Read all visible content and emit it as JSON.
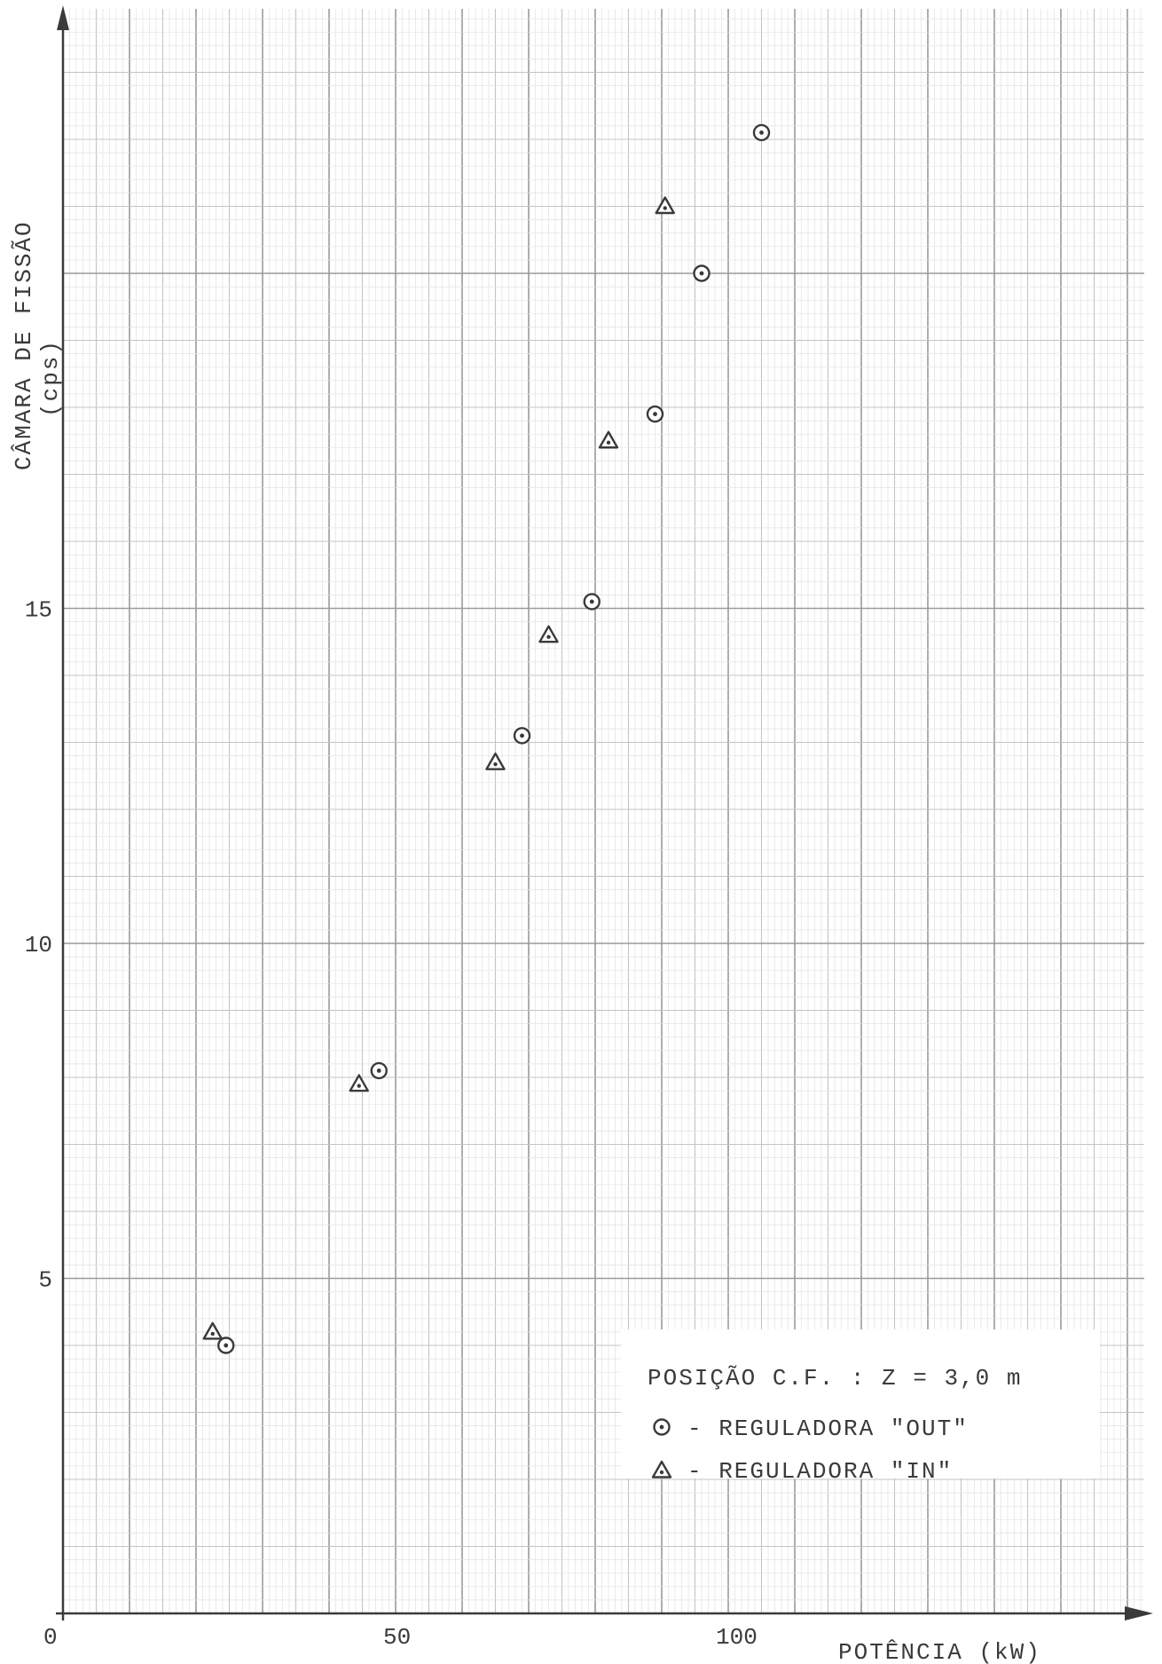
{
  "chart_data": {
    "type": "scatter",
    "title": "",
    "xlabel": "POTÊNCIA (kW)",
    "ylabel": "CÂMARA DE FISSÃO",
    "ylabel_unit": "(cps)",
    "xlim": [
      0,
      163
    ],
    "ylim": [
      0,
      24
    ],
    "x_ticks": [
      {
        "value": 0,
        "label": "0"
      },
      {
        "value": 50,
        "label": "50"
      },
      {
        "value": 100,
        "label": "100"
      }
    ],
    "y_ticks": [
      {
        "value": 5,
        "label": "5"
      },
      {
        "value": 10,
        "label": "10"
      },
      {
        "value": 15,
        "label": "15"
      }
    ],
    "grid": true,
    "legend_position": "bottom-right",
    "legend": {
      "title": "POSIÇÃO C.F. : Z = 3,0 m",
      "entries": [
        {
          "marker": "circle-dot",
          "label": "- REGULADORA \"OUT\""
        },
        {
          "marker": "triangle-dot",
          "label": "- REGULADORA \"IN\""
        }
      ]
    },
    "series": [
      {
        "marker": "circle-dot",
        "points": [
          {
            "x": 24.5,
            "y": 4.0
          },
          {
            "x": 47.5,
            "y": 8.1
          },
          {
            "x": 69.0,
            "y": 13.1
          },
          {
            "x": 79.5,
            "y": 15.1
          },
          {
            "x": 89.0,
            "y": 17.9
          },
          {
            "x": 96.0,
            "y": 20.0
          },
          {
            "x": 105.0,
            "y": 22.1
          }
        ]
      },
      {
        "marker": "triangle-dot",
        "points": [
          {
            "x": 22.5,
            "y": 4.2
          },
          {
            "x": 44.5,
            "y": 7.9
          },
          {
            "x": 65.0,
            "y": 12.7
          },
          {
            "x": 73.0,
            "y": 14.6
          },
          {
            "x": 82.0,
            "y": 17.5
          },
          {
            "x": 90.5,
            "y": 21.0
          }
        ]
      }
    ]
  },
  "colors": {
    "paper": "#ffffff",
    "grid_major": "#9a9a9a",
    "grid_medium": "#c4c4c4",
    "grid_minor": "#e2e2e2",
    "ink": "#3a3a3a"
  }
}
